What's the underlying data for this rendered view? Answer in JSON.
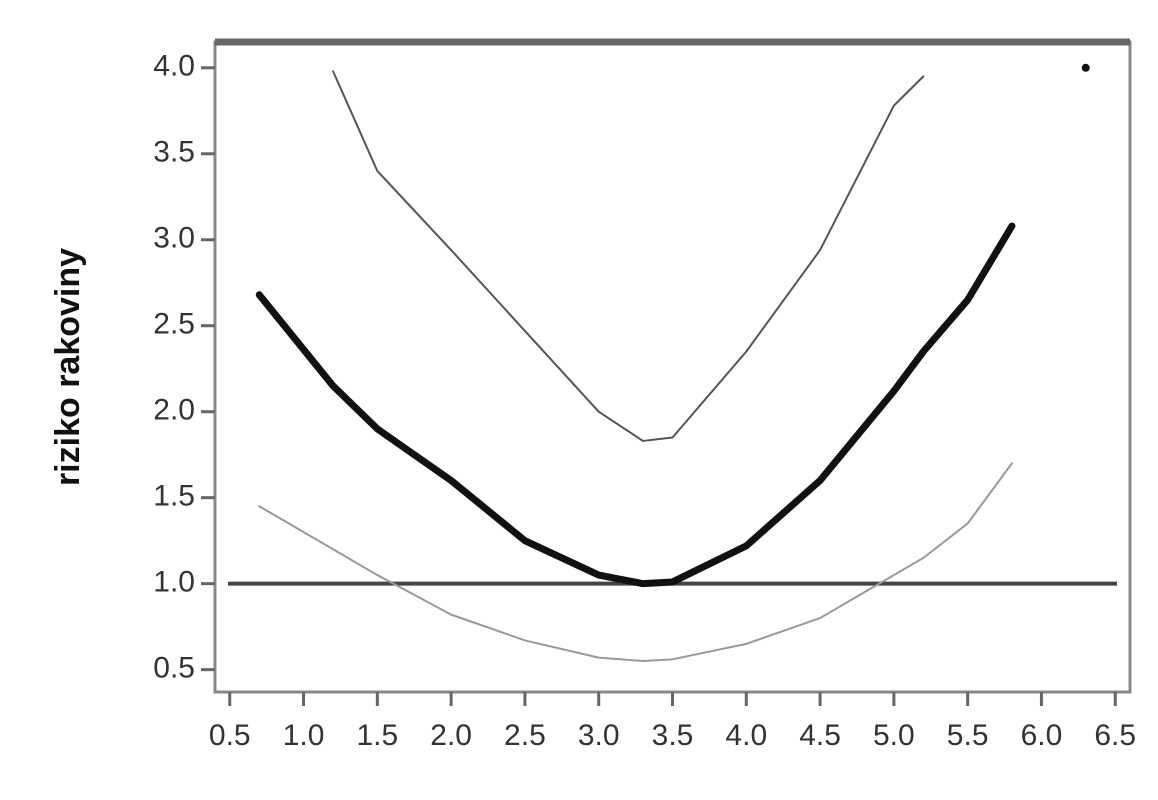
{
  "chart_data": {
    "type": "line",
    "ylabel": "riziko rakoviny",
    "x": [
      0.7,
      1.2,
      1.5,
      2.0,
      2.5,
      3.0,
      3.3,
      3.5,
      4.0,
      4.5,
      5.0,
      5.2,
      5.5,
      5.8
    ],
    "series": [
      {
        "color": "#555555",
        "width": 2,
        "values": [
          null,
          3.98,
          3.4,
          2.94,
          2.47,
          2.0,
          1.83,
          1.85,
          2.35,
          2.94,
          3.78,
          3.95,
          null,
          null
        ]
      },
      {
        "color": "#111111",
        "width": 7,
        "values": [
          2.68,
          2.15,
          1.9,
          1.6,
          1.25,
          1.05,
          1.0,
          1.01,
          1.22,
          1.6,
          2.12,
          2.35,
          2.65,
          3.08
        ]
      },
      {
        "color": "#999999",
        "width": 2,
        "values": [
          1.45,
          1.2,
          1.05,
          0.82,
          0.67,
          0.57,
          0.55,
          0.56,
          0.65,
          0.8,
          1.05,
          1.15,
          1.35,
          1.7
        ]
      }
    ],
    "hline": 1.0,
    "point": {
      "x": 6.3,
      "y": 4.0
    },
    "xlim": [
      0.4,
      6.6
    ],
    "ylim": [
      0.37,
      4.15
    ],
    "xticks": [
      0.5,
      {
        "value": 1,
        "label": "1.0"
      },
      1.5,
      {
        "value": 2,
        "label": "2.0"
      },
      2.5,
      {
        "value": 3,
        "label": "3.0"
      },
      3.5,
      {
        "value": 4,
        "label": "4.0"
      },
      4.5,
      {
        "value": 5,
        "label": "5.0"
      },
      5.5,
      {
        "value": 6,
        "label": "6.0"
      },
      6.5
    ],
    "yticks": [
      0.5,
      {
        "value": 1,
        "label": "1.0"
      },
      1.5,
      {
        "value": 2,
        "label": "2.0"
      },
      2.5,
      {
        "value": 3,
        "label": "3.0"
      },
      3.5,
      {
        "value": 4,
        "label": "4.0"
      }
    ]
  }
}
